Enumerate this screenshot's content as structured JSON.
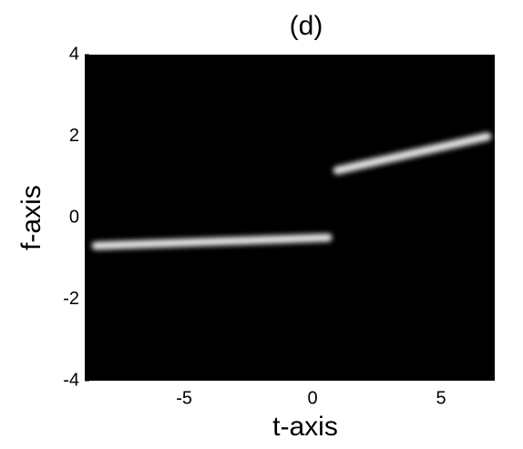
{
  "chart_data": {
    "type": "line",
    "title": "(d)",
    "xlabel": "t-axis",
    "ylabel": "f-axis",
    "background": "#000000",
    "xlim": [
      -8.87,
      7.09
    ],
    "xticks": [
      -5,
      0,
      5
    ],
    "ylim": [
      -4,
      4
    ],
    "yticks": [
      -4,
      -2,
      0,
      2,
      4
    ],
    "series": [
      {
        "color": "#ffffff",
        "x": [
          -8.44,
          0.6
        ],
        "values": [
          -0.69,
          -0.49
        ]
      },
      {
        "color": "#ffffff",
        "x": [
          0.96,
          6.8
        ],
        "values": [
          1.16,
          1.99
        ]
      }
    ]
  }
}
